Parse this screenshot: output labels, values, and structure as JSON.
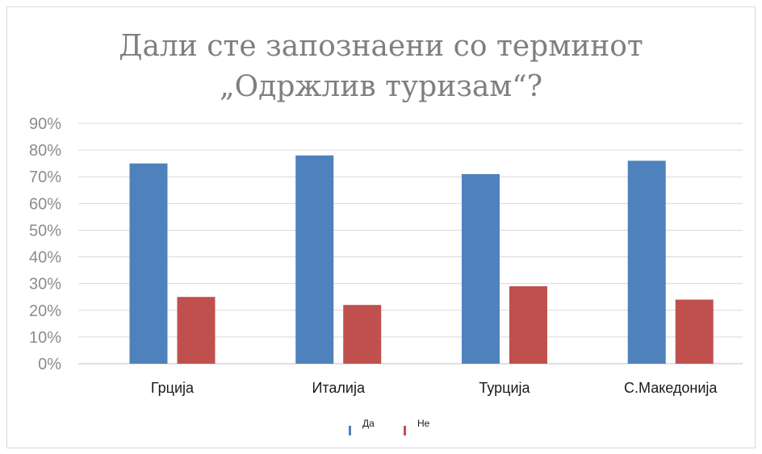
{
  "chart_data": {
    "type": "bar",
    "title_lines": [
      "Дали сте запознаени со терминот",
      "„Одржлив туризам“?"
    ],
    "categories": [
      "Грција",
      "Италија",
      "Турција",
      "С.Македонија"
    ],
    "series": [
      {
        "name": "Да",
        "values": [
          75,
          78,
          71,
          76
        ],
        "color": "#4f81bd"
      },
      {
        "name": "Не",
        "values": [
          25,
          22,
          29,
          24
        ],
        "color": "#c0504d"
      }
    ],
    "ylim": [
      0,
      90
    ],
    "yticks": [
      "0%",
      "10%",
      "20%",
      "30%",
      "40%",
      "50%",
      "60%",
      "70%",
      "80%",
      "90%"
    ],
    "grid": true,
    "legend_position": "bottom"
  }
}
